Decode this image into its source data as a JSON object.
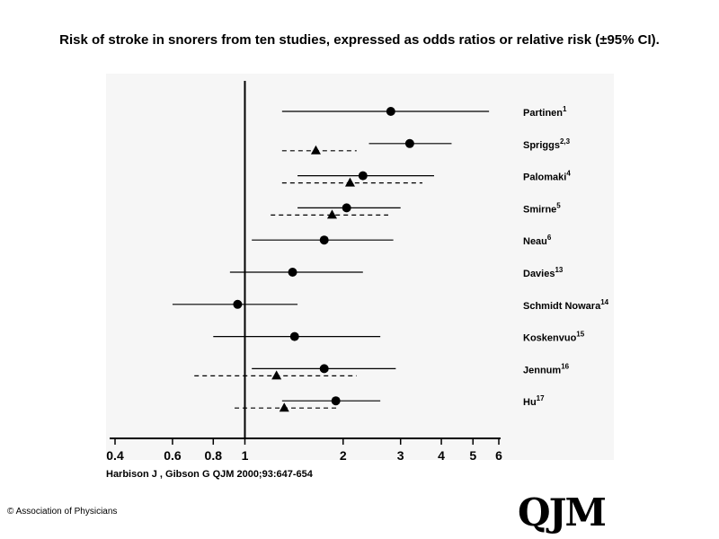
{
  "title": "Risk of stroke in snorers from ten studies, expressed as odds ratios or relative risk (±95% CI).",
  "citation": "Harbison J , Gibson G QJM 2000;93:647-654",
  "copyright": "© Association of Physicians",
  "logo_text": "QJM",
  "colors": {
    "ink": "#000000",
    "panel": "#f6f6f6",
    "background": "#ffffff"
  },
  "chart_data": {
    "type": "forest",
    "x_scale": "log",
    "xlim": [
      0.4,
      6
    ],
    "x_ticks": [
      {
        "value": 0.4,
        "label": "0.4"
      },
      {
        "value": 0.6,
        "label": "0.6"
      },
      {
        "value": 0.8,
        "label": "0.8"
      },
      {
        "value": 1,
        "label": "1"
      },
      {
        "value": 2,
        "label": "2"
      },
      {
        "value": 3,
        "label": "3"
      },
      {
        "value": 4,
        "label": "4"
      },
      {
        "value": 5,
        "label": "5"
      },
      {
        "value": 6,
        "label": "6"
      }
    ],
    "reference_line": 1,
    "studies": [
      {
        "name": "Partinen",
        "ref": "1",
        "solid": {
          "est": 2.8,
          "lo": 1.3,
          "hi": 5.6
        }
      },
      {
        "name": "Spriggs",
        "ref": "2,3",
        "solid": {
          "est": 3.2,
          "lo": 2.4,
          "hi": 4.3
        },
        "dashed": {
          "est": 1.65,
          "lo": 1.3,
          "hi": 2.2
        }
      },
      {
        "name": "Palomaki",
        "ref": "4",
        "solid": {
          "est": 2.3,
          "lo": 1.45,
          "hi": 3.8
        },
        "dashed": {
          "est": 2.1,
          "lo": 1.3,
          "hi": 3.5
        }
      },
      {
        "name": "Smirne",
        "ref": "5",
        "solid": {
          "est": 2.05,
          "lo": 1.45,
          "hi": 3.0
        },
        "dashed": {
          "est": 1.85,
          "lo": 1.2,
          "hi": 2.75
        }
      },
      {
        "name": "Neau",
        "ref": "6",
        "solid": {
          "est": 1.75,
          "lo": 1.05,
          "hi": 2.85
        }
      },
      {
        "name": "Davies",
        "ref": "13",
        "solid": {
          "est": 1.4,
          "lo": 0.9,
          "hi": 2.3
        }
      },
      {
        "name": "Schmidt Nowara",
        "ref": "14",
        "solid": {
          "est": 0.95,
          "lo": 0.6,
          "hi": 1.45
        }
      },
      {
        "name": "Koskenvuo",
        "ref": "15",
        "solid": {
          "est": 1.42,
          "lo": 0.8,
          "hi": 2.6
        }
      },
      {
        "name": "Jennum",
        "ref": "16",
        "solid": {
          "est": 1.75,
          "lo": 1.05,
          "hi": 2.9
        },
        "dashed": {
          "est": 1.25,
          "lo": 0.7,
          "hi": 2.2
        }
      },
      {
        "name": "Hu",
        "ref": "17",
        "solid": {
          "est": 1.9,
          "lo": 1.3,
          "hi": 2.6
        },
        "dashed": {
          "est": 1.32,
          "lo": 0.93,
          "hi": 1.95
        }
      }
    ]
  }
}
